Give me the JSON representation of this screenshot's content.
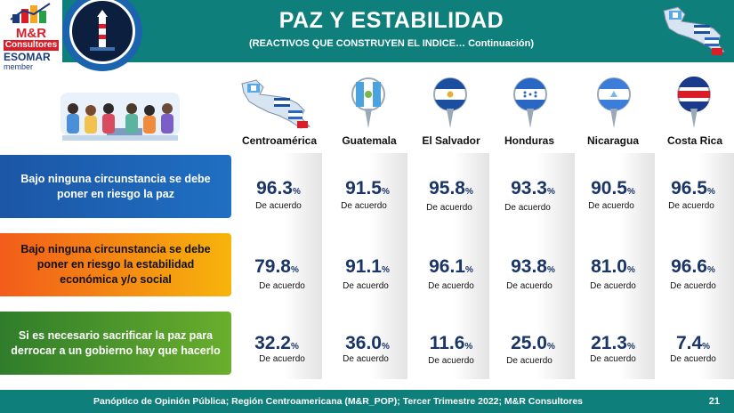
{
  "header": {
    "title": "PAZ Y ESTABILIDAD",
    "subtitle": "(REACTIVOS QUE CONSTRUYEN EL INDICE… Continuación)",
    "background_color": "#0e7f7a"
  },
  "logo": {
    "brand": "M&R",
    "sub": "Consultores",
    "esomar": "ESOMAR",
    "member": "member"
  },
  "countries": [
    {
      "name": "Centroamérica",
      "icon": "central-america-map-icon"
    },
    {
      "name": "Guatemala",
      "icon": "guatemala-flag-pin-icon"
    },
    {
      "name": "El Salvador",
      "icon": "el-salvador-flag-pin-icon"
    },
    {
      "name": "Honduras",
      "icon": "honduras-flag-pin-icon"
    },
    {
      "name": "Nicaragua",
      "icon": "nicaragua-flag-pin-icon"
    },
    {
      "name": "Costa Rica",
      "icon": "costa-rica-flag-pin-icon"
    }
  ],
  "statements": [
    {
      "text": "Bajo ninguna circunstancia se debe poner en riesgo la paz",
      "color": "#1c56a6",
      "values": [
        "96.3",
        "91.5",
        "95.8",
        "93.3",
        "90.5",
        "96.5"
      ]
    },
    {
      "text": "Bajo ninguna circunstancia se debe poner en riesgo la estabilidad económica y/o social",
      "color": "#f7941d",
      "values": [
        "79.8",
        "91.1",
        "96.1",
        "93.8",
        "81.0",
        "96.6"
      ]
    },
    {
      "text": "Si es necesario sacrificar la paz para derrocar a un gobierno hay que hacerlo",
      "color": "#3d8a2c",
      "values": [
        "32.2",
        "36.0",
        "11.6",
        "25.0",
        "21.3",
        "7.4"
      ]
    }
  ],
  "percent_sign": "%",
  "agree_label": "De acuerdo",
  "footer": {
    "source": "Panóptico de Opinión Pública; Región Centroamericana (M&R_POP); Tercer Trimestre 2022; M&R Consultores",
    "page_number": "21"
  }
}
